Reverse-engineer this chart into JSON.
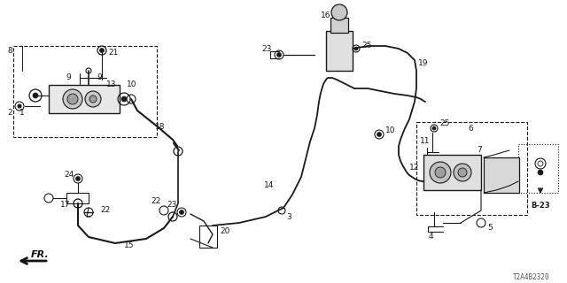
{
  "bg_color": "#ffffff",
  "line_color": "#1a1a1a",
  "text_color": "#1a1a1a",
  "diagram_code": "T2A4B2320",
  "figsize": [
    6.4,
    3.2
  ],
  "dpi": 100
}
